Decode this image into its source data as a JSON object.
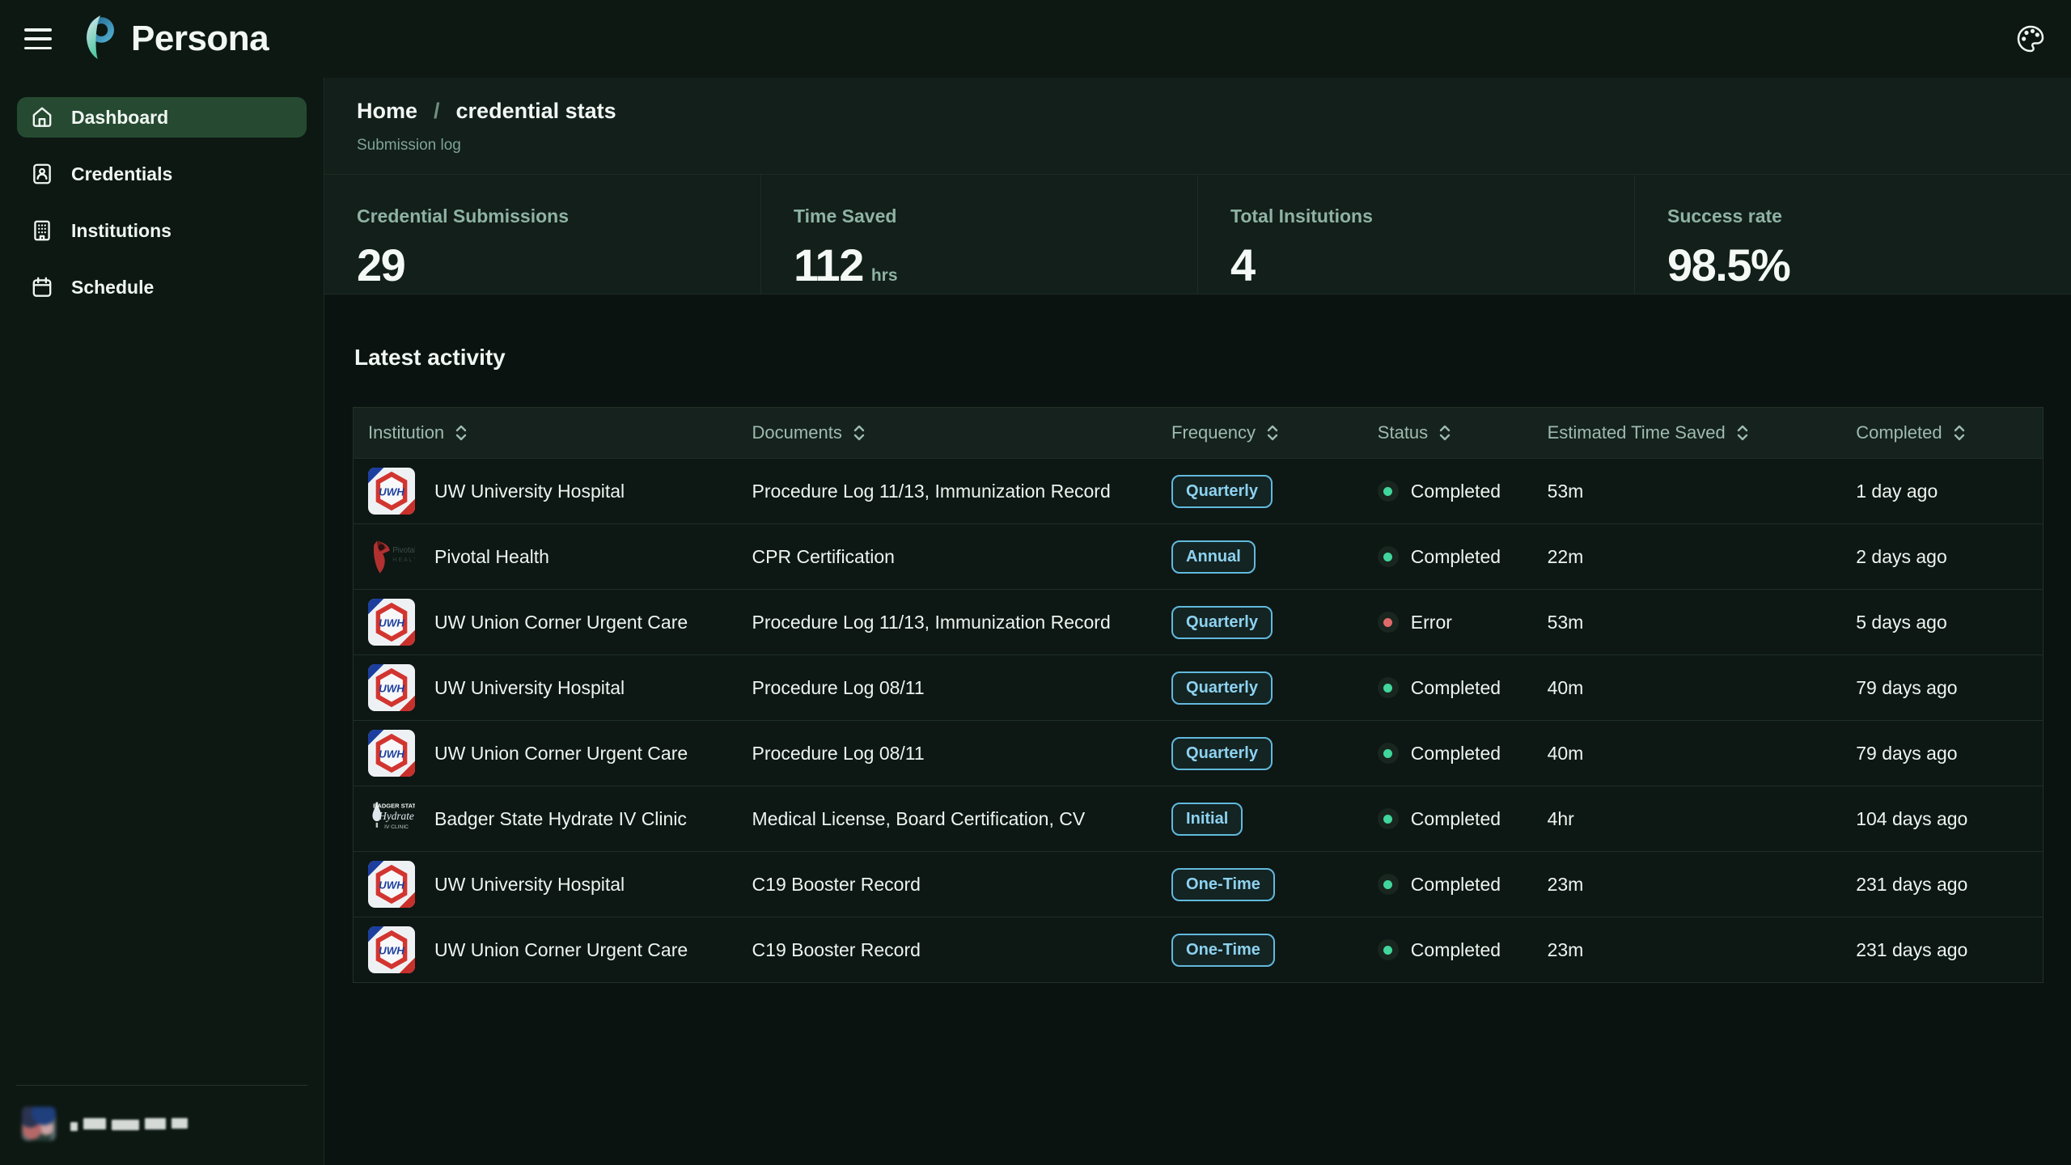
{
  "header": {
    "app_name": "Persona"
  },
  "sidebar": {
    "items": [
      {
        "label": "Dashboard",
        "icon": "home",
        "active": true
      },
      {
        "label": "Credentials",
        "icon": "id-card",
        "active": false
      },
      {
        "label": "Institutions",
        "icon": "building",
        "active": false
      },
      {
        "label": "Schedule",
        "icon": "calendar",
        "active": false
      }
    ]
  },
  "breadcrumb": {
    "home": "Home",
    "separator": "/",
    "current": "credential stats",
    "subtitle": "Submission log"
  },
  "stats": [
    {
      "label": "Credential Submissions",
      "value": "29",
      "suffix": ""
    },
    {
      "label": "Time Saved",
      "value": "112",
      "suffix": "hrs"
    },
    {
      "label": "Total Insitutions",
      "value": "4",
      "suffix": ""
    },
    {
      "label": "Success rate",
      "value": "98.5%",
      "suffix": ""
    }
  ],
  "activity": {
    "title": "Latest activity",
    "columns": [
      "Institution",
      "Documents",
      "Frequency",
      "Status",
      "Estimated Time Saved",
      "Completed"
    ],
    "rows": [
      {
        "institution": "UW University Hospital",
        "logo": "uwh",
        "documents": "Procedure Log 11/13, Immunization Record",
        "frequency": "Quarterly",
        "status": "Completed",
        "time_saved": "53m",
        "completed": "1 day ago"
      },
      {
        "institution": "Pivotal Health",
        "logo": "pivotal",
        "documents": "CPR Certification",
        "frequency": "Annual",
        "status": "Completed",
        "time_saved": "22m",
        "completed": "2 days ago"
      },
      {
        "institution": "UW Union Corner Urgent Care",
        "logo": "uwh",
        "documents": "Procedure Log 11/13, Immunization Record",
        "frequency": "Quarterly",
        "status": "Error",
        "time_saved": "53m",
        "completed": "5 days ago"
      },
      {
        "institution": "UW University Hospital",
        "logo": "uwh",
        "documents": "Procedure Log 08/11",
        "frequency": "Quarterly",
        "status": "Completed",
        "time_saved": "40m",
        "completed": "79 days ago"
      },
      {
        "institution": "UW Union Corner Urgent Care",
        "logo": "uwh",
        "documents": "Procedure Log 08/11",
        "frequency": "Quarterly",
        "status": "Completed",
        "time_saved": "40m",
        "completed": "79 days ago"
      },
      {
        "institution": "Badger State Hydrate IV Clinic",
        "logo": "badger",
        "documents": "Medical License, Board Certification, CV",
        "frequency": "Initial",
        "status": "Completed",
        "time_saved": "4hr",
        "completed": "104 days ago"
      },
      {
        "institution": "UW University Hospital",
        "logo": "uwh",
        "documents": "C19 Booster Record",
        "frequency": "One-Time",
        "status": "Completed",
        "time_saved": "23m",
        "completed": "231 days ago"
      },
      {
        "institution": "UW Union Corner Urgent Care",
        "logo": "uwh",
        "documents": "C19 Booster Record",
        "frequency": "One-Time",
        "status": "Completed",
        "time_saved": "23m",
        "completed": "231 days ago"
      }
    ]
  },
  "icons": {
    "menu": "hamburger-icon",
    "theme": "palette-icon",
    "sort": "sort-chevrons-icon",
    "status_dot": "status-dot"
  },
  "colors": {
    "status_completed": "#41d69c",
    "status_error": "#e06a6a",
    "badge_blue": "#8ed2f0",
    "active_nav_bg": "#264a31",
    "accent_teal": "#52c9a2"
  }
}
